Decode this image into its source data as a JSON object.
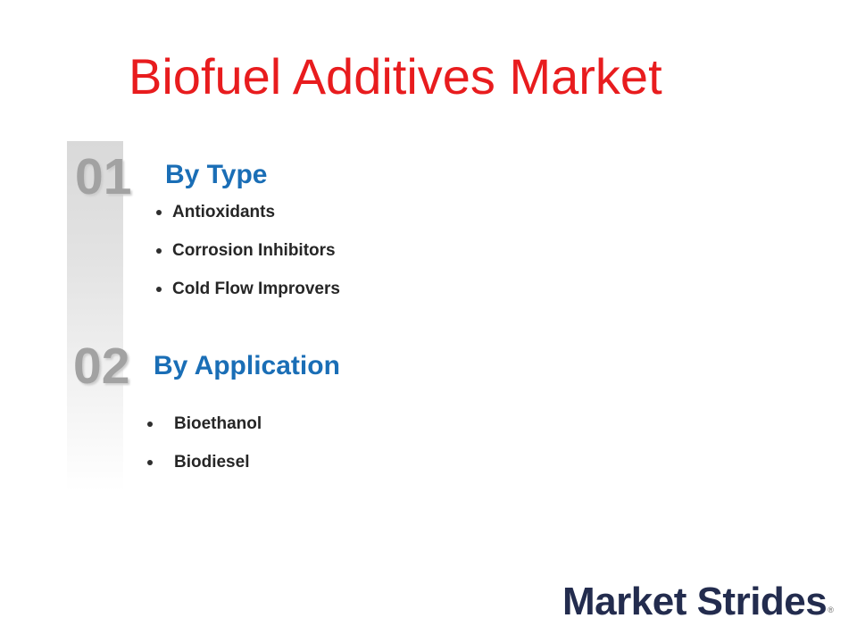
{
  "slide": {
    "title": "Biofuel Additives Market",
    "sections": [
      {
        "number": "01",
        "heading": "By Type",
        "items": [
          "Antioxidants",
          "Corrosion Inhibitors",
          "Cold Flow Improvers"
        ]
      },
      {
        "number": "02",
        "heading": "By Application",
        "items": [
          "Bioethanol",
          "Biodiesel"
        ]
      }
    ],
    "logo": {
      "text": "Market Strides",
      "registered_mark": "®"
    },
    "colors": {
      "title_red": "#e81c1e",
      "heading_blue": "#1a6eb6",
      "number_gray": "#a2a2a2",
      "bullet_text": "#262626",
      "logo_navy": "#232c4e",
      "bar_gradient_top": "#d9d9d9",
      "bar_gradient_bottom": "#ffffff"
    }
  }
}
